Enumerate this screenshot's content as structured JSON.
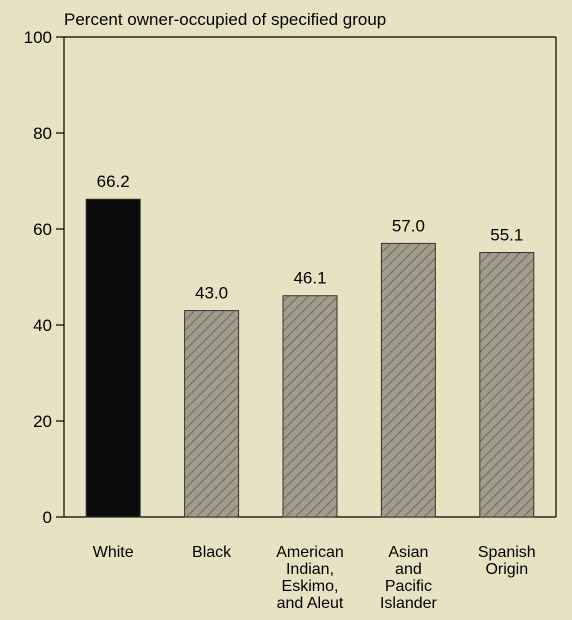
{
  "chart_data": {
    "type": "bar",
    "title": "Percent owner-occupied of specified group",
    "categories": [
      [
        "White"
      ],
      [
        "Black"
      ],
      [
        "American",
        "Indian,",
        "Eskimo,",
        "and Aleut"
      ],
      [
        "Asian",
        "and",
        "Pacific",
        "Islander"
      ],
      [
        "Spanish",
        "Origin"
      ]
    ],
    "values": [
      66.2,
      43.0,
      46.1,
      57.0,
      55.1
    ],
    "value_labels": [
      "66.2",
      "43.0",
      "46.1",
      "57.0",
      "55.1"
    ],
    "ylim": [
      0,
      100
    ],
    "yticks": [
      0,
      20,
      40,
      60,
      80,
      100
    ],
    "grid": false,
    "colors": {
      "background": "#e7e3c2",
      "highlight_bar": "#0a0a0a",
      "bar_fill": "#a19d8d",
      "hatch": "#5f5b4e"
    }
  }
}
